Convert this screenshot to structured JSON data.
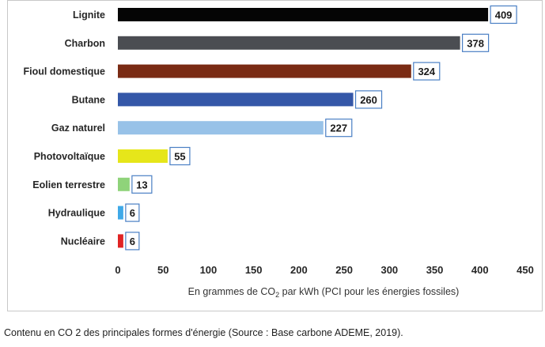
{
  "chart_data": {
    "type": "bar",
    "orientation": "horizontal",
    "categories": [
      "Lignite",
      "Charbon",
      "Fioul domestique",
      "Butane",
      "Gaz naturel",
      "Photovoltaïque",
      "Eolien terrestre",
      "Hydraulique",
      "Nucléaire"
    ],
    "values": [
      409,
      378,
      324,
      260,
      227,
      55,
      13,
      6,
      6
    ],
    "value_labels": [
      "409",
      "378",
      "324",
      "260",
      "227",
      "55",
      "13",
      "6",
      "6"
    ],
    "colors": [
      "#050505",
      "#4b4d52",
      "#7a2b14",
      "#3457a8",
      "#98c2e8",
      "#e6e61a",
      "#8fd37a",
      "#3fa9e8",
      "#e02424"
    ],
    "xlim": [
      0,
      450
    ],
    "xticks": [
      0,
      50,
      100,
      150,
      200,
      250,
      300,
      350,
      400,
      450
    ],
    "xticklabels": [
      "0",
      "50",
      "100",
      "150",
      "200",
      "250",
      "300",
      "350",
      "400",
      "450"
    ],
    "xlabel": {
      "prefix": "En grammes de CO",
      "subscript": "2",
      "suffix": " par kWh (PCI pour les énergies fossiles)"
    },
    "grid": false
  },
  "caption": "Contenu en CO 2 des principales formes d'énergie (Source : Base carbone ADEME, 2019)."
}
